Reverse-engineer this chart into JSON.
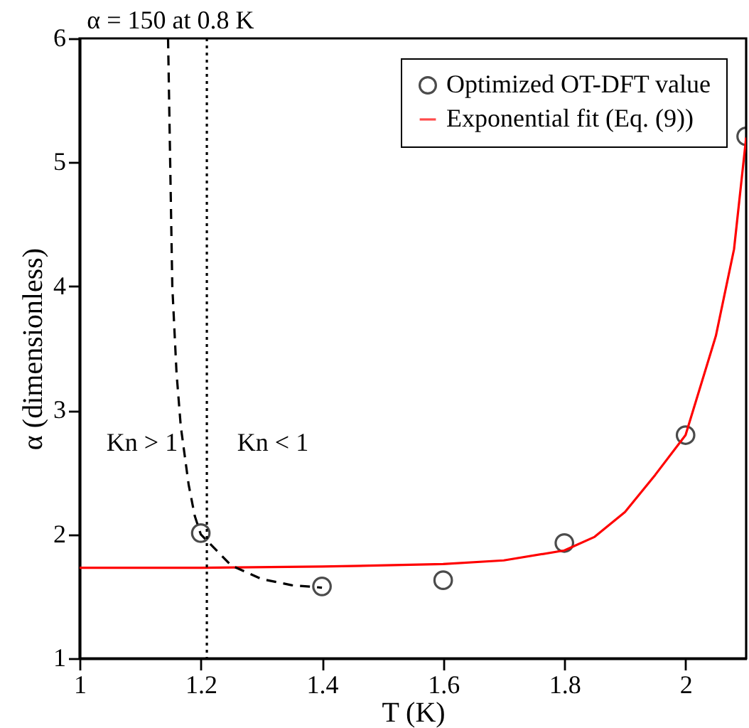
{
  "chart_data": {
    "type": "scatter",
    "xlabel": "T (K)",
    "ylabel": "α (dimensionless)",
    "xlim": [
      1,
      2.1
    ],
    "xticks": [
      1,
      1.2,
      1.4,
      1.6,
      1.8,
      2
    ],
    "ylim": [
      1,
      6
    ],
    "yticks": [
      1,
      2,
      3,
      4,
      5,
      6
    ],
    "grid": false,
    "legend": "top right",
    "series": [
      {
        "name": "Optimized OT-DFT value",
        "marker": "circle",
        "color": "#000000",
        "x": [
          1.2,
          1.4,
          1.6,
          1.8,
          2.0,
          2.1
        ],
        "values": [
          2.01,
          1.58,
          1.63,
          1.93,
          2.8,
          5.21
        ]
      },
      {
        "name": "Exponential fit (Eq. (9))",
        "type": "line",
        "marker": "none",
        "line_style": "solid",
        "color": "#ff0000",
        "x": [
          1.0,
          1.2,
          1.4,
          1.6,
          1.7,
          1.8,
          1.85,
          1.9,
          1.95,
          2.0,
          2.05,
          2.08,
          2.1
        ],
        "values": [
          1.73,
          1.73,
          1.74,
          1.76,
          1.79,
          1.87,
          1.98,
          2.18,
          2.48,
          2.8,
          3.6,
          4.3,
          5.2
        ]
      },
      {
        "type": "line",
        "marker": "none",
        "line_style": "dashed",
        "color": "#000000",
        "x": [
          1.146,
          1.153,
          1.16,
          1.167,
          1.18,
          1.19,
          1.2,
          1.25,
          1.3,
          1.35,
          1.4
        ],
        "values": [
          6,
          4.0,
          3.3,
          2.87,
          2.4,
          2.15,
          2.0,
          1.75,
          1.64,
          1.59,
          1.57
        ]
      }
    ],
    "ref_lines": [
      {
        "axis": "x",
        "value": 1.21,
        "line_style": "dotted",
        "color": "#000000"
      }
    ],
    "annotations": [
      {
        "text": "α = 150 at 0.8 K",
        "x": 1.15,
        "y": 6
      },
      "Kn > 1",
      "Kn < 1"
    ]
  }
}
